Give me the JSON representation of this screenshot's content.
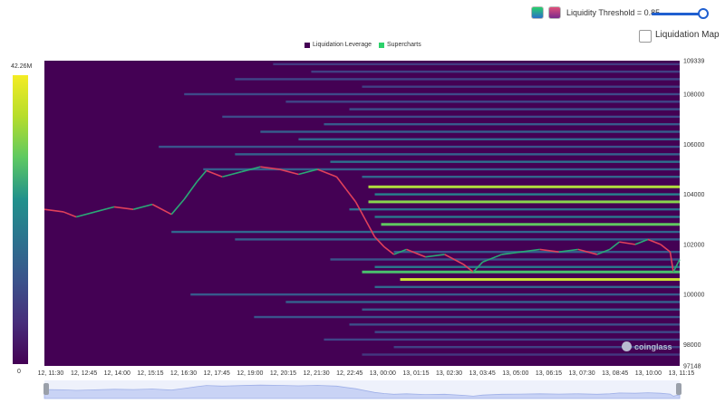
{
  "controls": {
    "threshold_label": "Liquidity Threshold = 0.85",
    "threshold_value": 0.85,
    "liquidation_map_label": "Liquidation Map",
    "liquidation_map_checked": false
  },
  "legend": [
    {
      "name": "Liquidation Leverage",
      "color": "#440154"
    },
    {
      "name": "Supercharts",
      "color": "#2dd16b"
    }
  ],
  "colorbar": {
    "max_label": "42.26M",
    "min_label": "0"
  },
  "watermark": "coinglass",
  "chart_data": {
    "type": "heatmap",
    "ylim": [
      97148,
      109339
    ],
    "y_ticks": [
      "109339",
      "108000",
      "106000",
      "104000",
      "102000",
      "100000",
      "98000",
      "97148"
    ],
    "y_tick_values": [
      109339,
      108000,
      106000,
      104000,
      102000,
      100000,
      98000,
      97148
    ],
    "x_ticks": [
      "12, 11:30",
      "12, 12:45",
      "12, 14:00",
      "12, 15:15",
      "12, 16:30",
      "12, 17:45",
      "12, 19:00",
      "12, 20:15",
      "12, 21:30",
      "12, 22:45",
      "13, 00:00",
      "13, 01:15",
      "13, 02:30",
      "13, 03:45",
      "13, 05:00",
      "13, 06:15",
      "13, 07:30",
      "13, 08:45",
      "13, 10:00",
      "13, 11:15"
    ],
    "colorscale": {
      "min": 0,
      "max": 42260000
    },
    "liquidity_bands": [
      {
        "price": 109200,
        "start": 0.36,
        "level": 0.22
      },
      {
        "price": 108900,
        "start": 0.42,
        "level": 0.25
      },
      {
        "price": 108600,
        "start": 0.3,
        "level": 0.28
      },
      {
        "price": 108300,
        "start": 0.5,
        "level": 0.25
      },
      {
        "price": 108000,
        "start": 0.22,
        "level": 0.3
      },
      {
        "price": 107700,
        "start": 0.38,
        "level": 0.28
      },
      {
        "price": 107400,
        "start": 0.48,
        "level": 0.33
      },
      {
        "price": 107100,
        "start": 0.28,
        "level": 0.3
      },
      {
        "price": 106800,
        "start": 0.44,
        "level": 0.38
      },
      {
        "price": 106500,
        "start": 0.34,
        "level": 0.4
      },
      {
        "price": 106200,
        "start": 0.4,
        "level": 0.45
      },
      {
        "price": 105900,
        "start": 0.18,
        "level": 0.35
      },
      {
        "price": 105600,
        "start": 0.3,
        "level": 0.42
      },
      {
        "price": 105300,
        "start": 0.45,
        "level": 0.5
      },
      {
        "price": 105000,
        "start": 0.25,
        "level": 0.4
      },
      {
        "price": 104700,
        "start": 0.5,
        "level": 0.45
      },
      {
        "price": 104300,
        "start": 0.51,
        "level": 0.95
      },
      {
        "price": 104000,
        "start": 0.52,
        "level": 0.6
      },
      {
        "price": 103700,
        "start": 0.51,
        "level": 0.92
      },
      {
        "price": 103400,
        "start": 0.48,
        "level": 0.5
      },
      {
        "price": 103100,
        "start": 0.52,
        "level": 0.55
      },
      {
        "price": 102800,
        "start": 0.53,
        "level": 0.88
      },
      {
        "price": 102500,
        "start": 0.2,
        "level": 0.45
      },
      {
        "price": 102200,
        "start": 0.3,
        "level": 0.4
      },
      {
        "price": 101700,
        "start": 0.55,
        "level": 0.38
      },
      {
        "price": 101400,
        "start": 0.45,
        "level": 0.35
      },
      {
        "price": 101100,
        "start": 0.52,
        "level": 0.55
      },
      {
        "price": 100900,
        "start": 0.5,
        "level": 0.85
      },
      {
        "price": 100600,
        "start": 0.56,
        "level": 0.97
      },
      {
        "price": 100300,
        "start": 0.52,
        "level": 0.45
      },
      {
        "price": 100000,
        "start": 0.23,
        "level": 0.38
      },
      {
        "price": 99700,
        "start": 0.38,
        "level": 0.42
      },
      {
        "price": 99400,
        "start": 0.5,
        "level": 0.4
      },
      {
        "price": 99100,
        "start": 0.33,
        "level": 0.35
      },
      {
        "price": 98800,
        "start": 0.48,
        "level": 0.32
      },
      {
        "price": 98500,
        "start": 0.52,
        "level": 0.3
      },
      {
        "price": 98200,
        "start": 0.44,
        "level": 0.28
      },
      {
        "price": 97900,
        "start": 0.55,
        "level": 0.26
      },
      {
        "price": 97600,
        "start": 0.5,
        "level": 0.22
      }
    ],
    "price_series": [
      {
        "t": 0.0,
        "p": 103400
      },
      {
        "t": 0.03,
        "p": 103300
      },
      {
        "t": 0.05,
        "p": 103100
      },
      {
        "t": 0.08,
        "p": 103300
      },
      {
        "t": 0.11,
        "p": 103500
      },
      {
        "t": 0.14,
        "p": 103400
      },
      {
        "t": 0.17,
        "p": 103600
      },
      {
        "t": 0.2,
        "p": 103200
      },
      {
        "t": 0.22,
        "p": 103800
      },
      {
        "t": 0.24,
        "p": 104500
      },
      {
        "t": 0.255,
        "p": 104950
      },
      {
        "t": 0.28,
        "p": 104700
      },
      {
        "t": 0.31,
        "p": 104900
      },
      {
        "t": 0.34,
        "p": 105100
      },
      {
        "t": 0.37,
        "p": 105000
      },
      {
        "t": 0.4,
        "p": 104800
      },
      {
        "t": 0.43,
        "p": 105000
      },
      {
        "t": 0.46,
        "p": 104700
      },
      {
        "t": 0.475,
        "p": 104200
      },
      {
        "t": 0.49,
        "p": 103700
      },
      {
        "t": 0.505,
        "p": 103000
      },
      {
        "t": 0.52,
        "p": 102300
      },
      {
        "t": 0.535,
        "p": 101900
      },
      {
        "t": 0.55,
        "p": 101600
      },
      {
        "t": 0.57,
        "p": 101800
      },
      {
        "t": 0.6,
        "p": 101500
      },
      {
        "t": 0.63,
        "p": 101600
      },
      {
        "t": 0.66,
        "p": 101200
      },
      {
        "t": 0.675,
        "p": 100900
      },
      {
        "t": 0.69,
        "p": 101300
      },
      {
        "t": 0.72,
        "p": 101600
      },
      {
        "t": 0.75,
        "p": 101700
      },
      {
        "t": 0.78,
        "p": 101800
      },
      {
        "t": 0.81,
        "p": 101700
      },
      {
        "t": 0.84,
        "p": 101800
      },
      {
        "t": 0.87,
        "p": 101600
      },
      {
        "t": 0.89,
        "p": 101800
      },
      {
        "t": 0.905,
        "p": 102100
      },
      {
        "t": 0.93,
        "p": 102000
      },
      {
        "t": 0.95,
        "p": 102200
      },
      {
        "t": 0.97,
        "p": 102000
      },
      {
        "t": 0.985,
        "p": 101700
      },
      {
        "t": 0.99,
        "p": 100900
      },
      {
        "t": 1.0,
        "p": 101400
      }
    ]
  }
}
